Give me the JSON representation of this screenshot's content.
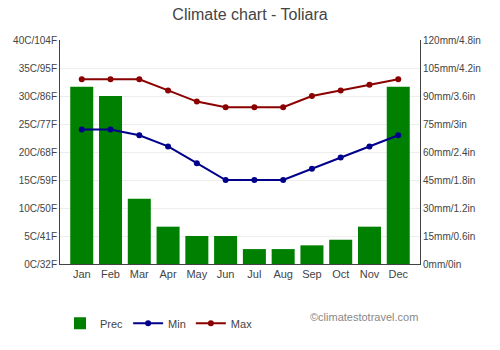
{
  "chart_data": {
    "type": "bar",
    "title": "Climate chart - Toliara",
    "categories": [
      "Jan",
      "Feb",
      "Mar",
      "Apr",
      "May",
      "Jun",
      "Jul",
      "Aug",
      "Sep",
      "Oct",
      "Nov",
      "Dec"
    ],
    "series": [
      {
        "name": "Prec",
        "type": "bar",
        "axis": "y2",
        "color": "#008000",
        "values": [
          95,
          90,
          35,
          20,
          15,
          15,
          8,
          8,
          10,
          13,
          20,
          95
        ]
      },
      {
        "name": "Min",
        "type": "line",
        "marker": "o",
        "color": "#00008B",
        "values": [
          24,
          24,
          23,
          21,
          18,
          15,
          15,
          15,
          17,
          19,
          21,
          23
        ]
      },
      {
        "name": "Max",
        "type": "line",
        "marker": "o",
        "color": "#8B0000",
        "values": [
          33,
          33,
          33,
          31,
          29,
          28,
          28,
          28,
          30,
          31,
          32,
          33
        ]
      }
    ],
    "ylim": [
      0,
      40
    ],
    "yticks": [
      {
        "value": 0,
        "label": "0C/32F"
      },
      {
        "value": 5,
        "label": "5C/41F"
      },
      {
        "value": 10,
        "label": "10C/50F"
      },
      {
        "value": 15,
        "label": "15C/59F"
      },
      {
        "value": 20,
        "label": "20C/68F"
      },
      {
        "value": 25,
        "label": "25C/77F"
      },
      {
        "value": 30,
        "label": "30C/86F"
      },
      {
        "value": 35,
        "label": "35C/95F"
      },
      {
        "value": 40,
        "label": "40C/104F"
      }
    ],
    "y2lim": [
      0,
      120
    ],
    "y2ticks": [
      {
        "value": 0,
        "label": "0mm/0in"
      },
      {
        "value": 15,
        "label": "15mm/0.6in"
      },
      {
        "value": 30,
        "label": "30mm/1.2in"
      },
      {
        "value": 45,
        "label": "45mm/1.8in"
      },
      {
        "value": 60,
        "label": "60mm/2.4in"
      },
      {
        "value": 75,
        "label": "75mm/3in"
      },
      {
        "value": 90,
        "label": "90mm/3.6in"
      },
      {
        "value": 105,
        "label": "105mm/4.2in"
      },
      {
        "value": 120,
        "label": "120mm/4.8in"
      }
    ],
    "grid": true,
    "legend": "bottom",
    "annotations": [
      "©climatestotravel.com"
    ]
  }
}
